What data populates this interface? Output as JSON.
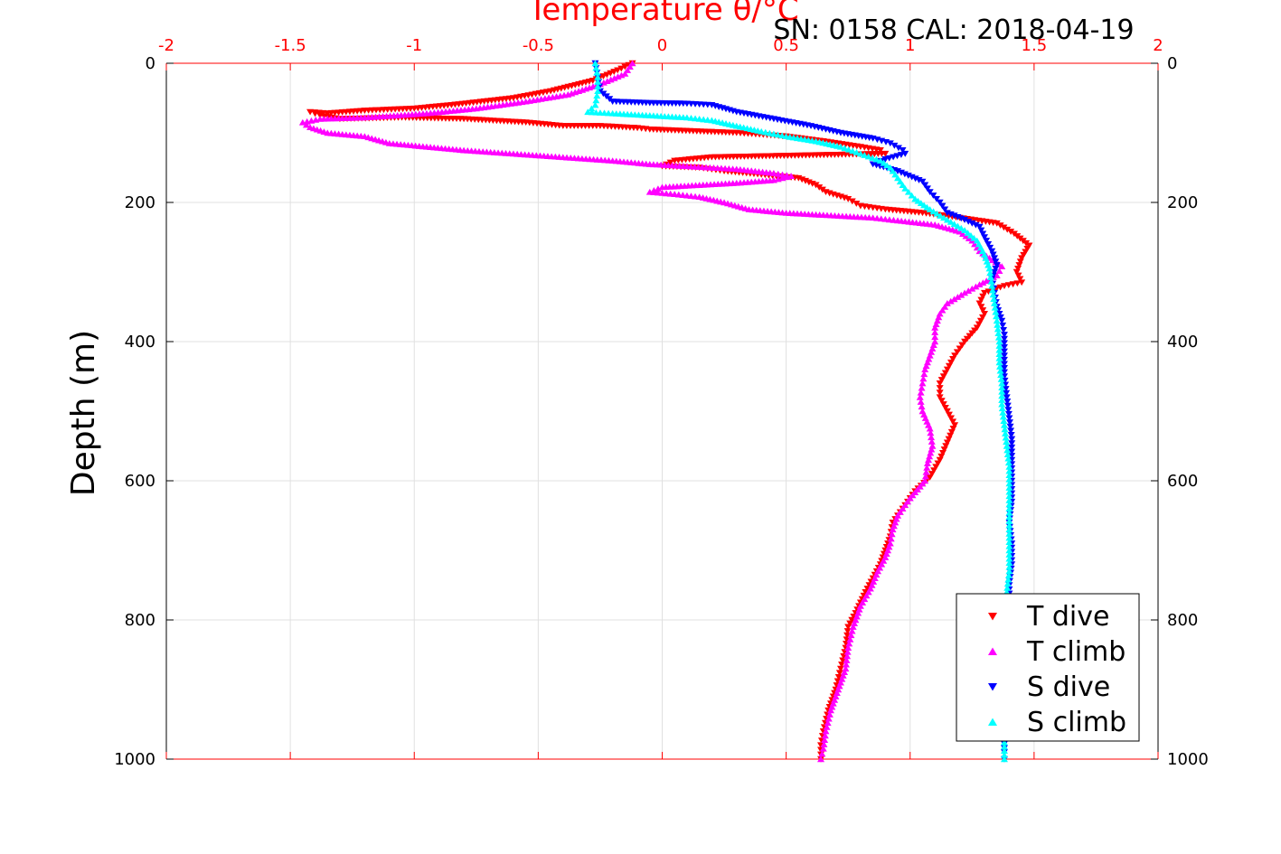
{
  "header": {
    "title": "Temperature θ/°C",
    "subtitle": "SN: 0158  CAL: 2018-04-19"
  },
  "chart_data": {
    "type": "scatter",
    "title": "Temperature θ/°C",
    "subtitle": "SN: 0158  CAL: 2018-04-19",
    "xlabel": "Temperature θ/°C",
    "ylabel": "Depth (m)",
    "xlim": [
      -2,
      2
    ],
    "ylim": [
      0,
      1000
    ],
    "y_reversed": true,
    "x_ticks": [
      -2,
      -1.5,
      -1,
      -0.5,
      0,
      0.5,
      1,
      1.5,
      2
    ],
    "x_tick_labels": [
      "-2",
      "-1.5",
      "-1",
      "-0.5",
      "0",
      "0.5",
      "1",
      "1.5",
      "2"
    ],
    "y_ticks": [
      0,
      200,
      400,
      600,
      800,
      1000
    ],
    "y_tick_labels": [
      "0",
      "200",
      "400",
      "600",
      "800",
      "1000"
    ],
    "grid": true,
    "legend_position": "bottom-right",
    "series": [
      {
        "name": "T dive",
        "color": "#ff0000",
        "marker": "triangle-down",
        "points": [
          [
            -0.12,
            0
          ],
          [
            -0.18,
            10
          ],
          [
            -0.28,
            25
          ],
          [
            -0.45,
            40
          ],
          [
            -0.6,
            50
          ],
          [
            -0.85,
            60
          ],
          [
            -1.0,
            65
          ],
          [
            -1.2,
            68
          ],
          [
            -1.35,
            72
          ],
          [
            -1.42,
            70
          ],
          [
            -1.38,
            75
          ],
          [
            -1.3,
            80
          ],
          [
            -1.05,
            78
          ],
          [
            -0.8,
            80
          ],
          [
            -0.55,
            85
          ],
          [
            -0.4,
            90
          ],
          [
            -0.25,
            90
          ],
          [
            -0.1,
            93
          ],
          [
            -0.05,
            95
          ],
          [
            0.3,
            100
          ],
          [
            0.5,
            105
          ],
          [
            0.65,
            112
          ],
          [
            0.8,
            120
          ],
          [
            0.88,
            125
          ],
          [
            0.9,
            130
          ],
          [
            0.2,
            135
          ],
          [
            0.05,
            140
          ],
          [
            0.0,
            148
          ],
          [
            0.15,
            150
          ],
          [
            0.25,
            155
          ],
          [
            0.4,
            160
          ],
          [
            0.55,
            165
          ],
          [
            0.62,
            175
          ],
          [
            0.66,
            185
          ],
          [
            0.75,
            195
          ],
          [
            0.8,
            205
          ],
          [
            0.9,
            210
          ],
          [
            1.05,
            215
          ],
          [
            1.2,
            222
          ],
          [
            1.35,
            230
          ],
          [
            1.42,
            245
          ],
          [
            1.48,
            262
          ],
          [
            1.45,
            280
          ],
          [
            1.43,
            300
          ],
          [
            1.45,
            315
          ],
          [
            1.38,
            320
          ],
          [
            1.3,
            330
          ],
          [
            1.28,
            345
          ],
          [
            1.3,
            360
          ],
          [
            1.27,
            380
          ],
          [
            1.22,
            400
          ],
          [
            1.18,
            420
          ],
          [
            1.15,
            440
          ],
          [
            1.12,
            460
          ],
          [
            1.12,
            480
          ],
          [
            1.15,
            500
          ],
          [
            1.18,
            520
          ],
          [
            1.15,
            545
          ],
          [
            1.12,
            570
          ],
          [
            1.08,
            595
          ],
          [
            1.02,
            615
          ],
          [
            0.97,
            640
          ],
          [
            0.93,
            660
          ],
          [
            0.92,
            680
          ],
          [
            0.9,
            700
          ],
          [
            0.88,
            720
          ],
          [
            0.85,
            740
          ],
          [
            0.82,
            760
          ],
          [
            0.78,
            790
          ],
          [
            0.75,
            810
          ],
          [
            0.74,
            840
          ],
          [
            0.72,
            870
          ],
          [
            0.7,
            900
          ],
          [
            0.67,
            930
          ],
          [
            0.65,
            960
          ],
          [
            0.64,
            980
          ],
          [
            0.64,
            1000
          ]
        ]
      },
      {
        "name": "T climb",
        "color": "#ff00ff",
        "marker": "triangle-up",
        "points": [
          [
            -0.12,
            0
          ],
          [
            -0.15,
            15
          ],
          [
            -0.25,
            30
          ],
          [
            -0.38,
            45
          ],
          [
            -0.55,
            55
          ],
          [
            -0.75,
            65
          ],
          [
            -0.95,
            72
          ],
          [
            -1.2,
            78
          ],
          [
            -1.38,
            80
          ],
          [
            -1.45,
            85
          ],
          [
            -1.42,
            92
          ],
          [
            -1.35,
            100
          ],
          [
            -1.2,
            105
          ],
          [
            -1.1,
            115
          ],
          [
            -0.95,
            120
          ],
          [
            -0.8,
            125
          ],
          [
            -0.6,
            130
          ],
          [
            -0.4,
            135
          ],
          [
            -0.2,
            140
          ],
          [
            -0.05,
            145
          ],
          [
            0.1,
            148
          ],
          [
            0.3,
            152
          ],
          [
            0.45,
            158
          ],
          [
            0.52,
            162
          ],
          [
            0.45,
            168
          ],
          [
            0.3,
            172
          ],
          [
            0.15,
            175
          ],
          [
            0.0,
            178
          ],
          [
            -0.05,
            185
          ],
          [
            0.05,
            188
          ],
          [
            0.15,
            192
          ],
          [
            0.25,
            200
          ],
          [
            0.35,
            210
          ],
          [
            0.5,
            215
          ],
          [
            0.65,
            218
          ],
          [
            0.85,
            222
          ],
          [
            0.95,
            226
          ],
          [
            1.1,
            232
          ],
          [
            1.2,
            242
          ],
          [
            1.25,
            255
          ],
          [
            1.28,
            270
          ],
          [
            1.32,
            280
          ],
          [
            1.37,
            292
          ],
          [
            1.35,
            305
          ],
          [
            1.28,
            318
          ],
          [
            1.22,
            330
          ],
          [
            1.15,
            345
          ],
          [
            1.12,
            360
          ],
          [
            1.1,
            380
          ],
          [
            1.1,
            400
          ],
          [
            1.08,
            420
          ],
          [
            1.06,
            440
          ],
          [
            1.05,
            460
          ],
          [
            1.04,
            480
          ],
          [
            1.05,
            500
          ],
          [
            1.08,
            525
          ],
          [
            1.09,
            550
          ],
          [
            1.07,
            575
          ],
          [
            1.06,
            600
          ],
          [
            1.0,
            625
          ],
          [
            0.95,
            650
          ],
          [
            0.93,
            670
          ],
          [
            0.92,
            690
          ],
          [
            0.9,
            710
          ],
          [
            0.87,
            730
          ],
          [
            0.84,
            755
          ],
          [
            0.8,
            780
          ],
          [
            0.77,
            810
          ],
          [
            0.75,
            840
          ],
          [
            0.74,
            870
          ],
          [
            0.71,
            900
          ],
          [
            0.68,
            930
          ],
          [
            0.66,
            960
          ],
          [
            0.65,
            985
          ],
          [
            0.64,
            1000
          ]
        ]
      },
      {
        "name": "S dive",
        "color": "#0000ff",
        "marker": "triangle-down",
        "points": [
          [
            -0.27,
            0
          ],
          [
            -0.26,
            20
          ],
          [
            -0.25,
            40
          ],
          [
            -0.2,
            55
          ],
          [
            -0.05,
            57
          ],
          [
            0.1,
            58
          ],
          [
            0.2,
            60
          ],
          [
            0.3,
            70
          ],
          [
            0.45,
            80
          ],
          [
            0.6,
            90
          ],
          [
            0.72,
            100
          ],
          [
            0.85,
            108
          ],
          [
            0.92,
            115
          ],
          [
            0.97,
            125
          ],
          [
            0.98,
            130
          ],
          [
            0.9,
            138
          ],
          [
            0.85,
            145
          ],
          [
            0.95,
            155
          ],
          [
            1.05,
            170
          ],
          [
            1.08,
            185
          ],
          [
            1.12,
            200
          ],
          [
            1.15,
            215
          ],
          [
            1.22,
            225
          ],
          [
            1.28,
            235
          ],
          [
            1.3,
            250
          ],
          [
            1.33,
            270
          ],
          [
            1.35,
            290
          ],
          [
            1.33,
            310
          ],
          [
            1.34,
            330
          ],
          [
            1.35,
            350
          ],
          [
            1.37,
            370
          ],
          [
            1.38,
            390
          ],
          [
            1.38,
            420
          ],
          [
            1.38,
            450
          ],
          [
            1.39,
            480
          ],
          [
            1.4,
            510
          ],
          [
            1.41,
            540
          ],
          [
            1.41,
            570
          ],
          [
            1.41,
            600
          ],
          [
            1.41,
            630
          ],
          [
            1.4,
            660
          ],
          [
            1.41,
            690
          ],
          [
            1.41,
            720
          ],
          [
            1.4,
            750
          ],
          [
            1.4,
            780
          ],
          [
            1.39,
            810
          ],
          [
            1.39,
            840
          ],
          [
            1.39,
            870
          ],
          [
            1.38,
            900
          ],
          [
            1.38,
            930
          ],
          [
            1.38,
            960
          ],
          [
            1.38,
            990
          ],
          [
            1.38,
            1000
          ]
        ]
      },
      {
        "name": "S climb",
        "color": "#00ffff",
        "marker": "triangle-up",
        "points": [
          [
            -0.27,
            0
          ],
          [
            -0.26,
            20
          ],
          [
            -0.26,
            40
          ],
          [
            -0.27,
            60
          ],
          [
            -0.3,
            70
          ],
          [
            -0.2,
            72
          ],
          [
            -0.05,
            75
          ],
          [
            0.1,
            78
          ],
          [
            0.2,
            82
          ],
          [
            0.3,
            90
          ],
          [
            0.4,
            98
          ],
          [
            0.5,
            105
          ],
          [
            0.62,
            112
          ],
          [
            0.72,
            120
          ],
          [
            0.8,
            130
          ],
          [
            0.88,
            140
          ],
          [
            0.92,
            150
          ],
          [
            0.95,
            165
          ],
          [
            0.98,
            180
          ],
          [
            1.02,
            195
          ],
          [
            1.08,
            210
          ],
          [
            1.15,
            225
          ],
          [
            1.22,
            240
          ],
          [
            1.27,
            255
          ],
          [
            1.3,
            275
          ],
          [
            1.32,
            295
          ],
          [
            1.33,
            320
          ],
          [
            1.34,
            345
          ],
          [
            1.35,
            370
          ],
          [
            1.36,
            400
          ],
          [
            1.36,
            430
          ],
          [
            1.37,
            460
          ],
          [
            1.37,
            490
          ],
          [
            1.38,
            520
          ],
          [
            1.39,
            550
          ],
          [
            1.4,
            580
          ],
          [
            1.4,
            610
          ],
          [
            1.4,
            640
          ],
          [
            1.4,
            670
          ],
          [
            1.4,
            700
          ],
          [
            1.4,
            730
          ],
          [
            1.39,
            760
          ],
          [
            1.39,
            790
          ],
          [
            1.39,
            820
          ],
          [
            1.39,
            850
          ],
          [
            1.38,
            880
          ],
          [
            1.38,
            910
          ],
          [
            1.38,
            940
          ],
          [
            1.38,
            970
          ],
          [
            1.38,
            1000
          ]
        ]
      }
    ]
  }
}
